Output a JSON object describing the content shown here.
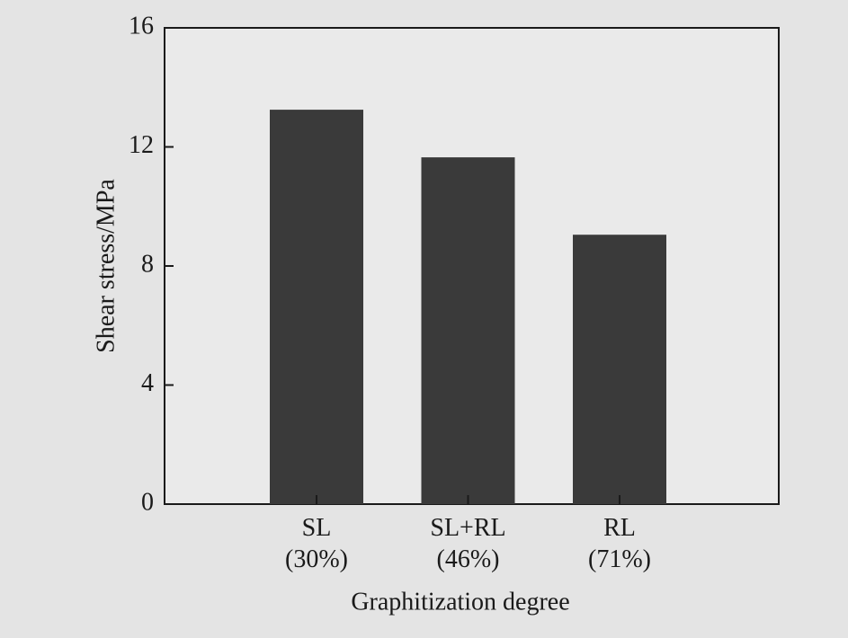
{
  "chart_data": {
    "type": "bar",
    "categories": [
      "SL\n(30%)",
      "SL+RL\n(46%)",
      "RL\n(71%)"
    ],
    "values": [
      13.25,
      11.65,
      9.05
    ],
    "color": "#3a3a3a",
    "ylim": [
      0,
      16
    ],
    "yticks": [
      0,
      4,
      8,
      12,
      16
    ],
    "xlabel": "Graphitization degree",
    "ylabel": "Shear stress/MPa"
  }
}
